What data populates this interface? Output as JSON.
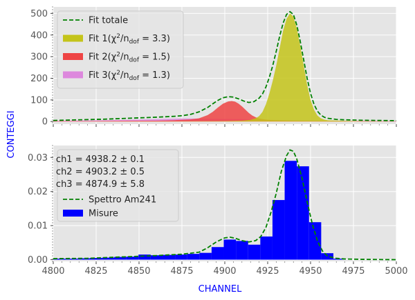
{
  "figure": {
    "ylabel": "CONTEGGI",
    "xlabel": "CHANNEL",
    "label_color": "#0000ff",
    "background_color": "#e5e5e5",
    "grid_color": "#ffffff"
  },
  "chart_data": [
    {
      "type": "area",
      "panel": "top",
      "xlim": [
        4800,
        5000
      ],
      "ylim": [
        -12,
        530
      ],
      "yticks": [
        0,
        100,
        200,
        300,
        400,
        500
      ],
      "ytick_labels": [
        "0",
        "100",
        "200",
        "300",
        "400",
        "500"
      ],
      "grid": true,
      "legend_position": "top-left",
      "series": [
        {
          "name": "Fit 3(χ²/n_dof = 1.3)",
          "legend_main": "Fit 3(χ",
          "legend_sup": "2",
          "legend_mid": "/n",
          "legend_sub": "dof",
          "legend_tail": " = 1.3)",
          "color": "#dd88dd",
          "kind": "filled",
          "peak_x": 4874.9,
          "values": [
            [
              4800,
              3
            ],
            [
              4810,
              4
            ],
            [
              4820,
              5
            ],
            [
              4830,
              6
            ],
            [
              4840,
              7
            ],
            [
              4850,
              9
            ],
            [
              4860,
              11
            ],
            [
              4870,
              13
            ],
            [
              4875,
              14
            ],
            [
              4880,
              14
            ],
            [
              4890,
              13
            ],
            [
              4900,
              12
            ],
            [
              4910,
              11
            ],
            [
              4920,
              9
            ],
            [
              4930,
              7
            ],
            [
              4940,
              6
            ],
            [
              4950,
              5
            ],
            [
              4960,
              4
            ],
            [
              4970,
              3
            ],
            [
              4980,
              3
            ],
            [
              4990,
              2
            ],
            [
              5000,
              2
            ]
          ]
        },
        {
          "name": "Fit 2(χ²/n_dof = 1.5)",
          "legend_main": "Fit 2(χ",
          "legend_sup": "2",
          "legend_mid": "/n",
          "legend_sub": "dof",
          "legend_tail": " = 1.5)",
          "color": "#ee4444",
          "kind": "filled",
          "peak_x": 4903.2,
          "values": [
            [
              4800,
              2
            ],
            [
              4820,
              2
            ],
            [
              4840,
              3
            ],
            [
              4860,
              4
            ],
            [
              4870,
              6
            ],
            [
              4880,
              10
            ],
            [
              4885,
              15
            ],
            [
              4890,
              30
            ],
            [
              4893,
              45
            ],
            [
              4896,
              65
            ],
            [
              4899,
              83
            ],
            [
              4902,
              93
            ],
            [
              4904,
              95
            ],
            [
              4906,
              92
            ],
            [
              4908,
              83
            ],
            [
              4910,
              70
            ],
            [
              4912,
              55
            ],
            [
              4914,
              40
            ],
            [
              4916,
              28
            ],
            [
              4918,
              20
            ],
            [
              4920,
              14
            ],
            [
              4925,
              8
            ],
            [
              4930,
              6
            ],
            [
              4940,
              4
            ],
            [
              4950,
              3
            ],
            [
              4970,
              2
            ],
            [
              5000,
              1
            ]
          ]
        },
        {
          "name": "Fit 1(χ²/n_dof = 3.3)",
          "legend_main": "Fit 1(χ",
          "legend_sup": "2",
          "legend_mid": "/n",
          "legend_sub": "dof",
          "legend_tail": " = 3.3)",
          "color": "#c4c41a",
          "kind": "filled",
          "peak_x": 4938.2,
          "values": [
            [
              4800,
              0
            ],
            [
              4880,
              1
            ],
            [
              4900,
              2
            ],
            [
              4910,
              4
            ],
            [
              4915,
              8
            ],
            [
              4918,
              15
            ],
            [
              4920,
              25
            ],
            [
              4922,
              45
            ],
            [
              4924,
              80
            ],
            [
              4926,
              130
            ],
            [
              4928,
              190
            ],
            [
              4930,
              260
            ],
            [
              4932,
              340
            ],
            [
              4934,
              420
            ],
            [
              4936,
              475
            ],
            [
              4938,
              500
            ],
            [
              4940,
              485
            ],
            [
              4942,
              430
            ],
            [
              4944,
              350
            ],
            [
              4946,
              260
            ],
            [
              4948,
              170
            ],
            [
              4950,
              100
            ],
            [
              4952,
              55
            ],
            [
              4954,
              28
            ],
            [
              4956,
              15
            ],
            [
              4958,
              9
            ],
            [
              4960,
              6
            ],
            [
              4970,
              3
            ],
            [
              4980,
              1
            ],
            [
              5000,
              0
            ]
          ]
        },
        {
          "name": "Fit totale",
          "legend_main": "Fit totale",
          "color": "#008000",
          "kind": "dashed-line",
          "values": [
            [
              4800,
              5
            ],
            [
              4810,
              7
            ],
            [
              4820,
              9
            ],
            [
              4830,
              11
            ],
            [
              4840,
              14
            ],
            [
              4850,
              17
            ],
            [
              4860,
              20
            ],
            [
              4870,
              24
            ],
            [
              4875,
              27
            ],
            [
              4880,
              33
            ],
            [
              4885,
              45
            ],
            [
              4890,
              65
            ],
            [
              4893,
              82
            ],
            [
              4896,
              98
            ],
            [
              4899,
              110
            ],
            [
              4902,
              115
            ],
            [
              4905,
              113
            ],
            [
              4908,
              105
            ],
            [
              4911,
              95
            ],
            [
              4914,
              88
            ],
            [
              4917,
              92
            ],
            [
              4920,
              108
            ],
            [
              4922,
              128
            ],
            [
              4924,
              160
            ],
            [
              4926,
              205
            ],
            [
              4928,
              260
            ],
            [
              4930,
              325
            ],
            [
              4932,
              395
            ],
            [
              4934,
              455
            ],
            [
              4936,
              495
            ],
            [
              4938,
              508
            ],
            [
              4940,
              495
            ],
            [
              4942,
              445
            ],
            [
              4944,
              370
            ],
            [
              4946,
              285
            ],
            [
              4948,
              200
            ],
            [
              4950,
              130
            ],
            [
              4952,
              80
            ],
            [
              4954,
              48
            ],
            [
              4956,
              30
            ],
            [
              4958,
              20
            ],
            [
              4960,
              15
            ],
            [
              4965,
              10
            ],
            [
              4970,
              8
            ],
            [
              4980,
              6
            ],
            [
              4990,
              5
            ],
            [
              5000,
              4
            ]
          ]
        }
      ]
    },
    {
      "type": "bar",
      "panel": "bottom",
      "xlim": [
        4800,
        5000
      ],
      "ylim": [
        -0.0005,
        0.0335
      ],
      "yticks": [
        0,
        0.01,
        0.02,
        0.03
      ],
      "ytick_labels": [
        "0.00",
        "0.01",
        "0.02",
        "0.03"
      ],
      "xticks": [
        4800,
        4825,
        4850,
        4875,
        4900,
        4925,
        4950,
        4975,
        5000
      ],
      "xtick_labels": [
        "4800",
        "4825",
        "4850",
        "4875",
        "4900",
        "4925",
        "4950",
        "4975",
        "5000"
      ],
      "grid": true,
      "legend_position": "top-left",
      "annotations": [
        "ch1 = 4938.2 ± 0.1",
        "ch2 = 4903.2 ± 0.5",
        "ch3 = 4874.9 ± 5.8"
      ],
      "bin_width": 7.1,
      "bins": [
        {
          "x": 4800.0,
          "value": 0.0003
        },
        {
          "x": 4807.1,
          "value": 0.0003
        },
        {
          "x": 4814.2,
          "value": 0.0004
        },
        {
          "x": 4821.3,
          "value": 0.0005
        },
        {
          "x": 4828.4,
          "value": 0.0006
        },
        {
          "x": 4835.5,
          "value": 0.0008
        },
        {
          "x": 4842.6,
          "value": 0.0009
        },
        {
          "x": 4849.7,
          "value": 0.0015
        },
        {
          "x": 4856.8,
          "value": 0.0013
        },
        {
          "x": 4863.9,
          "value": 0.0014
        },
        {
          "x": 4871.0,
          "value": 0.0015
        },
        {
          "x": 4878.1,
          "value": 0.0017
        },
        {
          "x": 4885.2,
          "value": 0.002
        },
        {
          "x": 4892.3,
          "value": 0.0037
        },
        {
          "x": 4899.4,
          "value": 0.0059
        },
        {
          "x": 4906.5,
          "value": 0.0055
        },
        {
          "x": 4913.6,
          "value": 0.0044
        },
        {
          "x": 4920.7,
          "value": 0.0068
        },
        {
          "x": 4927.8,
          "value": 0.0175
        },
        {
          "x": 4934.9,
          "value": 0.029
        },
        {
          "x": 4942.0,
          "value": 0.0274
        },
        {
          "x": 4949.1,
          "value": 0.011
        },
        {
          "x": 4956.2,
          "value": 0.0019
        },
        {
          "x": 4963.3,
          "value": 0.0003
        }
      ],
      "series": [
        {
          "name": "Spettro Am241",
          "color": "#008000",
          "kind": "dashed-line",
          "values": [
            [
              4800,
              0.0003
            ],
            [
              4820,
              0.0004
            ],
            [
              4840,
              0.0008
            ],
            [
              4860,
              0.0012
            ],
            [
              4875,
              0.0016
            ],
            [
              4885,
              0.0022
            ],
            [
              4890,
              0.0035
            ],
            [
              4895,
              0.0052
            ],
            [
              4900,
              0.0064
            ],
            [
              4903,
              0.0066
            ],
            [
              4906,
              0.0063
            ],
            [
              4910,
              0.0056
            ],
            [
              4914,
              0.0052
            ],
            [
              4918,
              0.0056
            ],
            [
              4921,
              0.0068
            ],
            [
              4924,
              0.0095
            ],
            [
              4927,
              0.014
            ],
            [
              4930,
              0.0195
            ],
            [
              4933,
              0.026
            ],
            [
              4936,
              0.0305
            ],
            [
              4938,
              0.0322
            ],
            [
              4940,
              0.0318
            ],
            [
              4942,
              0.0295
            ],
            [
              4945,
              0.024
            ],
            [
              4948,
              0.017
            ],
            [
              4951,
              0.0105
            ],
            [
              4954,
              0.0055
            ],
            [
              4957,
              0.0025
            ],
            [
              4960,
              0.001
            ],
            [
              4965,
              0.0004
            ],
            [
              4970,
              0.0002
            ],
            [
              4980,
              0.0001
            ],
            [
              5000,
              0
            ]
          ]
        },
        {
          "name": "Misure",
          "color": "#0000ff",
          "kind": "histogram"
        }
      ]
    }
  ]
}
